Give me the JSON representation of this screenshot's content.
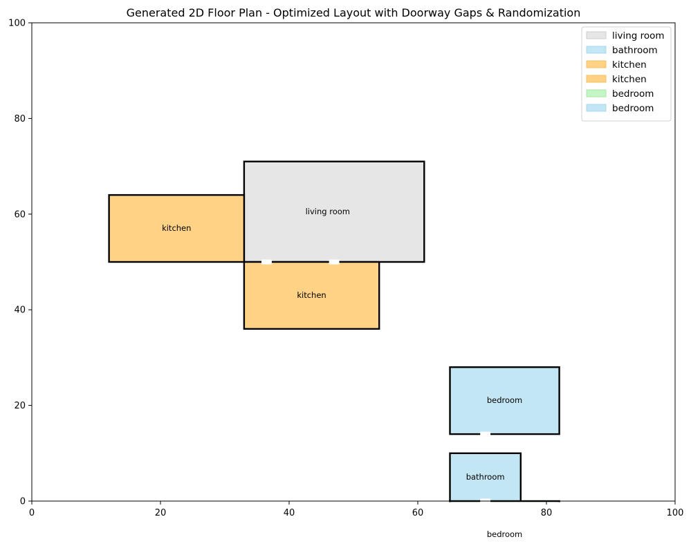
{
  "chart_data": {
    "type": "floor-plan",
    "title": "Generated 2D Floor Plan - Optimized Layout with Doorway Gaps & Randomization",
    "xlim": [
      0,
      100
    ],
    "ylim": [
      0,
      100
    ],
    "x_ticks": [
      "0",
      "20",
      "40",
      "60",
      "80",
      "100"
    ],
    "y_ticks": [
      "0",
      "20",
      "40",
      "60",
      "80",
      "100"
    ],
    "grid": false,
    "legend_position": "top-right",
    "colors": {
      "living room": "#e6e6e6",
      "bathroom": "#c2e6f4",
      "kitchen": "#ffd285",
      "bedroom-green": "#c5f5c5",
      "bedroom-blue": "#c2e6f4"
    },
    "rooms": [
      {
        "name": "living room",
        "x": 33,
        "y": 50,
        "w": 28,
        "h": 21,
        "color": "#e6e6e6",
        "label_x": 46,
        "label_y": 60.5
      },
      {
        "name": "kitchen",
        "x": 12,
        "y": 50,
        "w": 21,
        "h": 14,
        "color": "#ffd285",
        "label_x": 22.5,
        "label_y": 57
      },
      {
        "name": "kitchen",
        "x": 33,
        "y": 36,
        "w": 21,
        "h": 14,
        "color": "#ffd285",
        "label_x": 43.5,
        "label_y": 43
      },
      {
        "name": "bedroom",
        "x": 65,
        "y": 14,
        "w": 17,
        "h": 14,
        "color": "#c2e6f4",
        "label_x": 73.5,
        "label_y": 21
      },
      {
        "name": "bathroom",
        "x": 65,
        "y": -1,
        "w": 11,
        "h": 11,
        "color": "#c2e6f4",
        "label_x": 70.5,
        "label_y": 5
      },
      {
        "name": "bedroom",
        "x": 65,
        "y": -14,
        "w": 17,
        "h": 14,
        "color": "#c5f5c5",
        "label_x": 73.5,
        "label_y": -7
      }
    ],
    "doors": [
      {
        "x": 36.5,
        "y": 50,
        "width": 1.6
      },
      {
        "x": 47.0,
        "y": 50,
        "width": 1.6
      },
      {
        "x": 70.5,
        "y": 14,
        "width": 1.6
      },
      {
        "x": 70.5,
        "y": 0,
        "width": 1.6
      }
    ],
    "legend": [
      {
        "label": "living room",
        "color": "#e6e6e6",
        "border": "#cfcfcf"
      },
      {
        "label": "bathroom",
        "color": "#c2e6f4",
        "border": "#a8d8ec"
      },
      {
        "label": "kitchen",
        "color": "#ffd285",
        "border": "#f5c060"
      },
      {
        "label": "kitchen",
        "color": "#ffd285",
        "border": "#f5c060"
      },
      {
        "label": "bedroom",
        "color": "#c5f5c5",
        "border": "#a4e8a4"
      },
      {
        "label": "bedroom",
        "color": "#c2e6f4",
        "border": "#a8d8ec"
      }
    ]
  }
}
